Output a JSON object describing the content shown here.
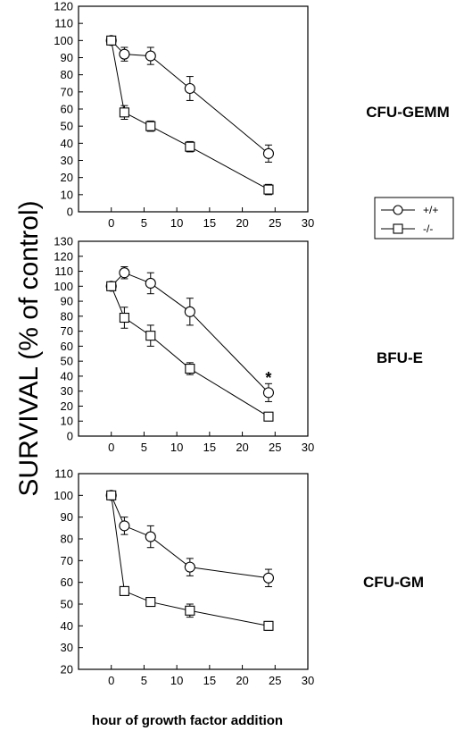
{
  "figure": {
    "ylabel": "SURVIVAL (% of control)",
    "xlabel": "hour of growth factor addition"
  },
  "legend": {
    "items": [
      {
        "marker": "circle",
        "label": "+/+"
      },
      {
        "marker": "square",
        "label": "-/-"
      }
    ]
  },
  "chart_data": [
    {
      "type": "line",
      "panel_label": "CFU-GEMM",
      "x": [
        0,
        2,
        6,
        12,
        24
      ],
      "xlim": [
        -5,
        30
      ],
      "xticks": [
        0,
        5,
        10,
        15,
        20,
        25,
        30
      ],
      "ylim": [
        0,
        120
      ],
      "yticks": [
        0,
        10,
        20,
        30,
        40,
        50,
        60,
        70,
        80,
        90,
        100,
        110,
        120
      ],
      "series": [
        {
          "name": "+/+",
          "marker": "circle",
          "values": [
            100,
            92,
            91,
            72,
            34
          ],
          "errors": [
            0,
            4,
            5,
            7,
            5
          ]
        },
        {
          "name": "-/-",
          "marker": "square",
          "values": [
            100,
            58,
            50,
            38,
            13
          ],
          "errors": [
            0,
            4,
            3,
            3,
            3
          ]
        }
      ],
      "annotations": []
    },
    {
      "type": "line",
      "panel_label": "BFU-E",
      "x": [
        0,
        2,
        6,
        12,
        24
      ],
      "xlim": [
        -5,
        30
      ],
      "xticks": [
        0,
        5,
        10,
        15,
        20,
        25,
        30
      ],
      "ylim": [
        0,
        130
      ],
      "yticks": [
        0,
        10,
        20,
        30,
        40,
        50,
        60,
        70,
        80,
        90,
        100,
        110,
        120,
        130
      ],
      "series": [
        {
          "name": "+/+",
          "marker": "circle",
          "values": [
            100,
            109,
            102,
            83,
            29
          ],
          "errors": [
            0,
            4,
            7,
            9,
            6
          ]
        },
        {
          "name": "-/-",
          "marker": "square",
          "values": [
            100,
            79,
            67,
            45,
            13
          ],
          "errors": [
            0,
            7,
            7,
            4,
            2
          ]
        }
      ],
      "annotations": [
        {
          "text": "*",
          "x": 24,
          "y": 40
        }
      ]
    },
    {
      "type": "line",
      "panel_label": "CFU-GM",
      "x": [
        0,
        2,
        6,
        12,
        24
      ],
      "xlim": [
        -5,
        30
      ],
      "xticks": [
        0,
        5,
        10,
        15,
        20,
        25,
        30
      ],
      "ylim": [
        20,
        110
      ],
      "yticks": [
        20,
        30,
        40,
        50,
        60,
        70,
        80,
        90,
        100,
        110
      ],
      "series": [
        {
          "name": "+/+",
          "marker": "circle",
          "values": [
            100,
            86,
            81,
            67,
            62
          ],
          "errors": [
            0,
            4,
            5,
            4,
            4
          ]
        },
        {
          "name": "-/-",
          "marker": "square",
          "values": [
            100,
            56,
            51,
            47,
            40
          ],
          "errors": [
            0,
            1,
            2,
            3,
            2
          ]
        }
      ],
      "annotations": []
    }
  ]
}
